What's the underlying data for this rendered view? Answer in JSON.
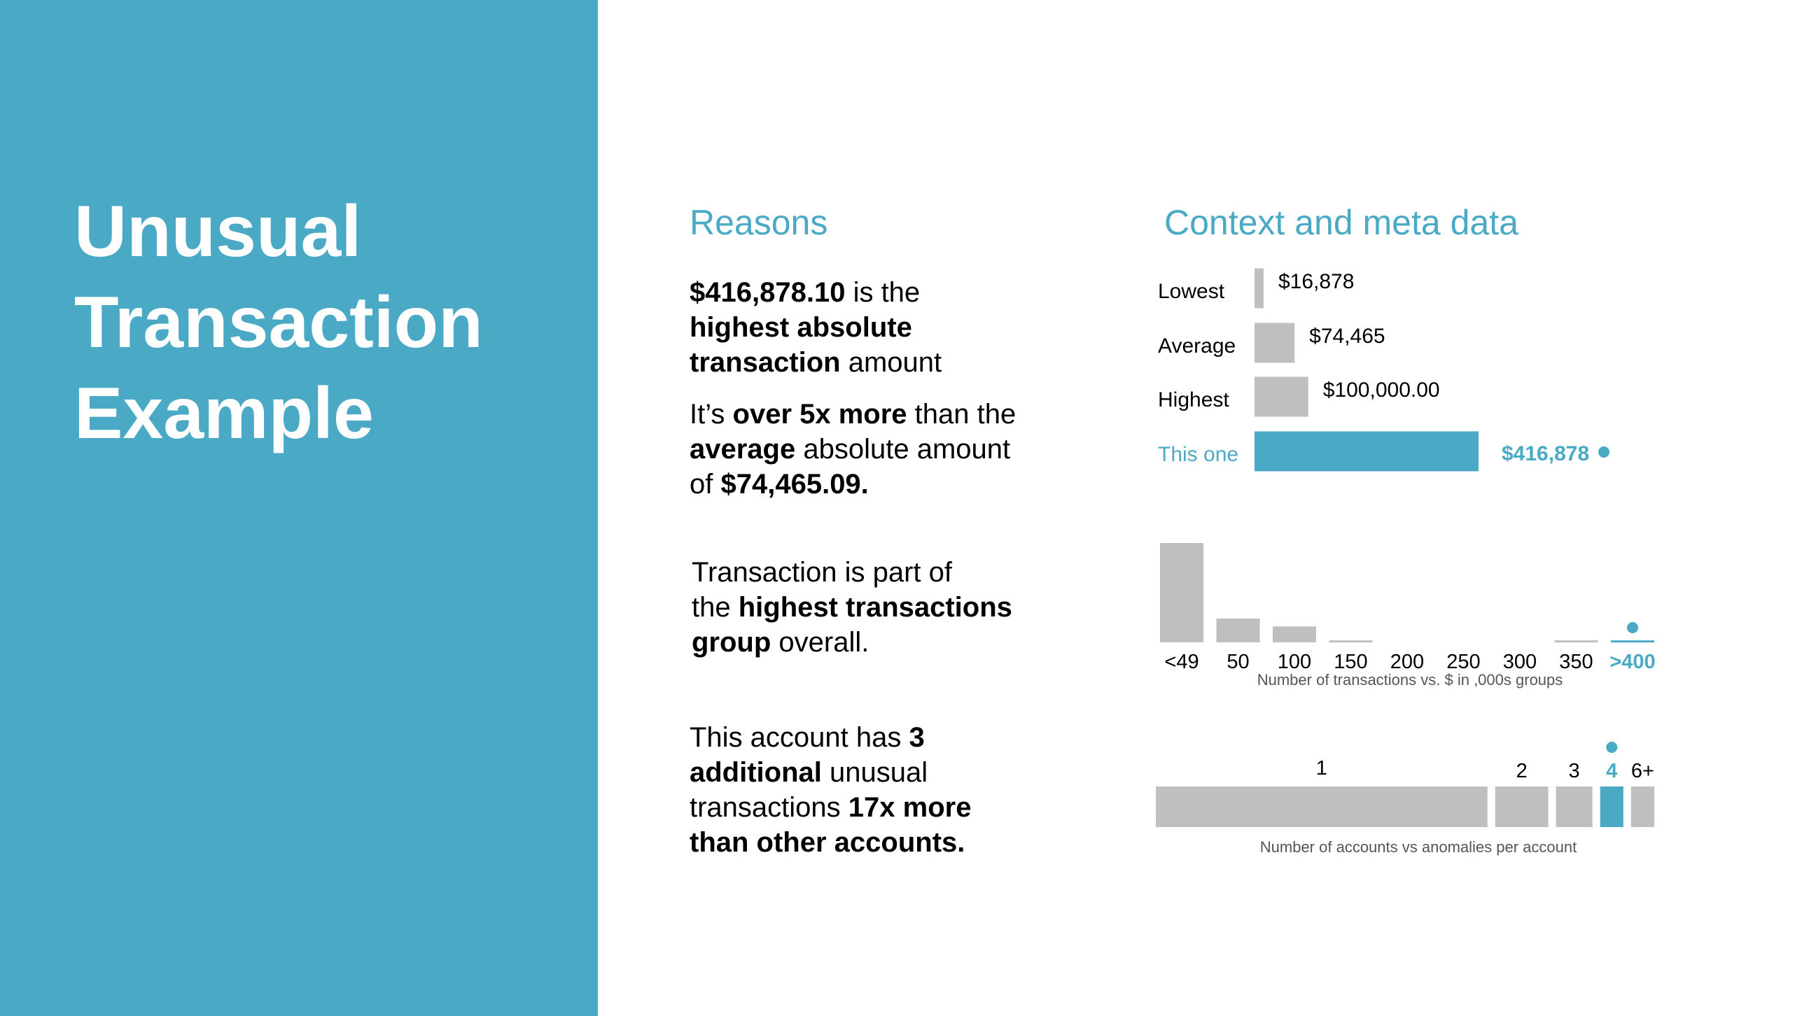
{
  "colors": {
    "accent": "#4AAAC5",
    "bar_gray": "#BFBFBF",
    "text": "#000000",
    "caption": "#555555"
  },
  "title_lines": [
    "Unusual",
    "Transaction",
    "Example"
  ],
  "reasons": {
    "heading": "Reasons",
    "items": [
      {
        "lines": [
          [
            {
              "t": "$416,878.10",
              "b": true
            },
            {
              "t": " is the",
              "b": false
            }
          ],
          [
            {
              "t": "highest absolute",
              "b": true
            }
          ],
          [
            {
              "t": "transaction",
              "b": true
            },
            {
              "t": " amount",
              "b": false
            }
          ]
        ]
      },
      {
        "lines": [
          [
            {
              "t": "It’s ",
              "b": false
            },
            {
              "t": "over 5x more",
              "b": true
            },
            {
              "t": " than the",
              "b": false
            }
          ],
          [
            {
              "t": "average",
              "b": true
            },
            {
              "t": " absolute amount",
              "b": false
            }
          ],
          [
            {
              "t": "of ",
              "b": false
            },
            {
              "t": "$74,465.09.",
              "b": true
            }
          ]
        ]
      },
      {
        "lines": [
          [
            {
              "t": "Transaction is part of",
              "b": false
            }
          ],
          [
            {
              "t": "the ",
              "b": false
            },
            {
              "t": "highest transactions",
              "b": true
            }
          ],
          [
            {
              "t": "group",
              "b": true
            },
            {
              "t": " overall.",
              "b": false
            }
          ]
        ]
      },
      {
        "lines": [
          [
            {
              "t": "This account has ",
              "b": false
            },
            {
              "t": "3",
              "b": true
            }
          ],
          [
            {
              "t": "additional",
              "b": true
            },
            {
              "t": " unusual",
              "b": false
            }
          ],
          [
            {
              "t": "transactions ",
              "b": false
            },
            {
              "t": "17x more",
              "b": true
            }
          ],
          [
            {
              "t": "than other accounts.",
              "b": true
            }
          ]
        ]
      }
    ]
  },
  "context": {
    "heading": "Context and meta data"
  },
  "chart_data": [
    {
      "type": "bar",
      "orientation": "horizontal",
      "categories": [
        "Lowest",
        "Average",
        "Highest",
        "This one"
      ],
      "values": [
        16878,
        74465,
        100000,
        416878
      ],
      "value_labels": [
        "$16,878",
        "$74,465",
        "$100,000.00",
        "$416,878"
      ],
      "highlight_index": 3
    },
    {
      "type": "bar",
      "categories": [
        "<49",
        "50",
        "100",
        "150",
        "200",
        "250",
        "300",
        "350",
        ">400"
      ],
      "values": [
        100,
        24,
        16,
        2,
        0,
        0,
        0,
        2,
        2
      ],
      "xlabel": "Number of transactions vs. $ in ,000s groups",
      "highlight_index": 8
    },
    {
      "type": "bar",
      "orientation": "proportional-width",
      "categories": [
        "1",
        "2",
        "3",
        "4",
        "6+"
      ],
      "values": [
        100,
        16,
        11,
        7,
        7
      ],
      "xlabel": "Number of accounts vs anomalies per account",
      "highlight_index": 3
    }
  ]
}
